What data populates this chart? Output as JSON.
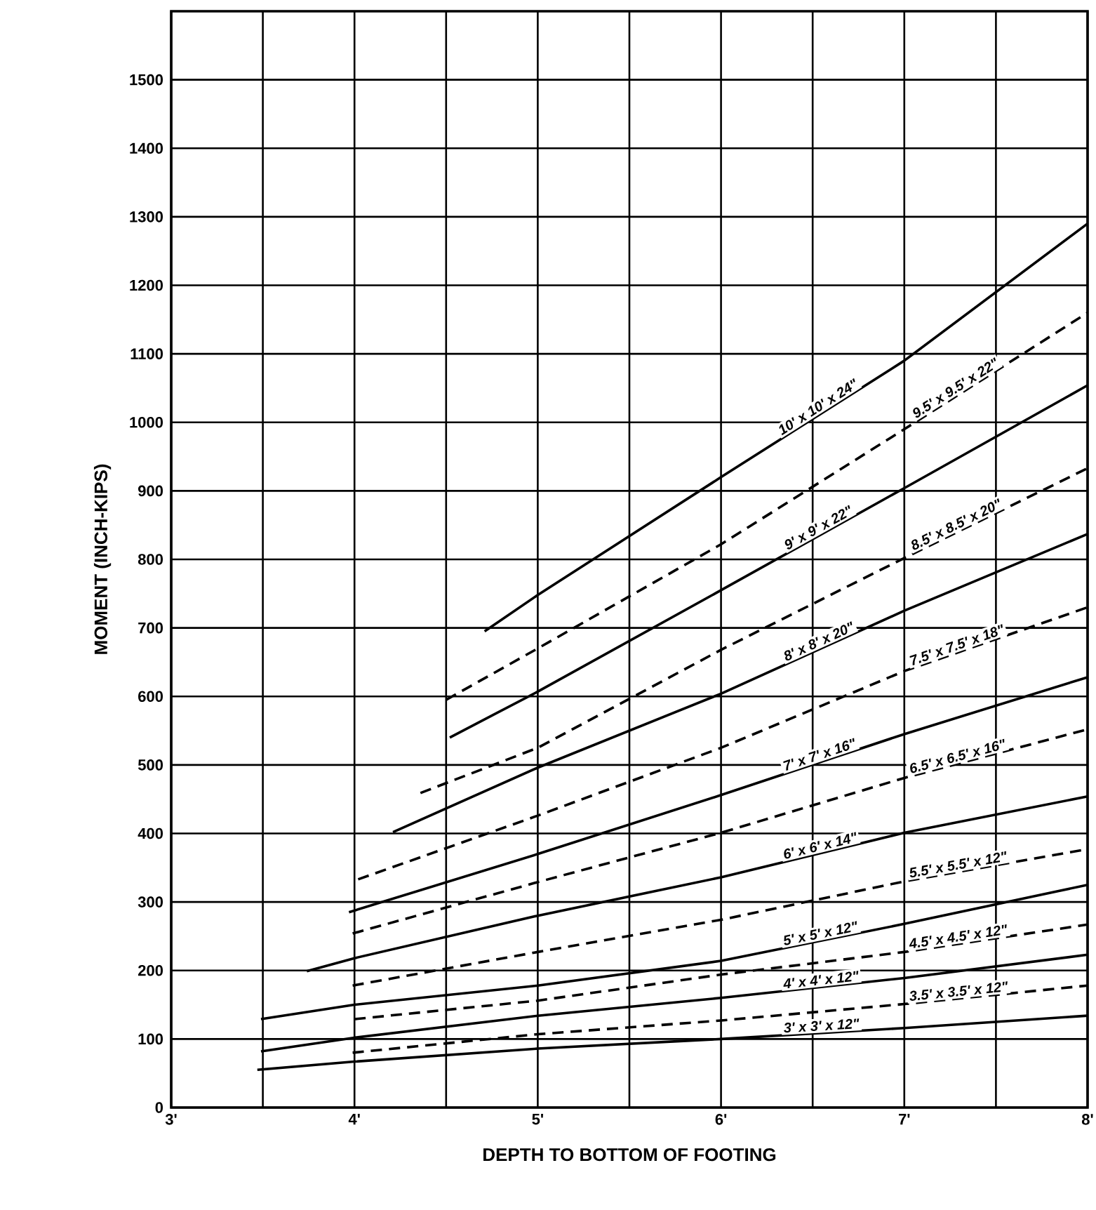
{
  "chart_data": {
    "type": "line",
    "xlabel": "DEPTH TO BOTTOM OF FOOTING",
    "ylabel": "MOMENT (INCH-KIPS)",
    "xlim": [
      3,
      8
    ],
    "ylim": [
      0,
      1600
    ],
    "xticks": [
      {
        "value": 3,
        "label": "3'"
      },
      {
        "value": 3.5,
        "label": null
      },
      {
        "value": 4,
        "label": "4'"
      },
      {
        "value": 4.5,
        "label": null
      },
      {
        "value": 5,
        "label": "5'"
      },
      {
        "value": 5.5,
        "label": null
      },
      {
        "value": 6,
        "label": "6'"
      },
      {
        "value": 6.5,
        "label": null
      },
      {
        "value": 7,
        "label": "7'"
      },
      {
        "value": 7.5,
        "label": null
      },
      {
        "value": 8,
        "label": "8'"
      }
    ],
    "yticks": [
      0,
      100,
      200,
      300,
      400,
      500,
      600,
      700,
      800,
      900,
      1000,
      1100,
      1200,
      1300,
      1400,
      1500
    ],
    "grid": true,
    "legend": false,
    "marker": "none",
    "series": [
      {
        "name": "10' x 10' x 24\"",
        "color": "#000000",
        "line_style": "solid",
        "x": [
          4.71,
          5,
          6,
          7,
          8
        ],
        "values": [
          695,
          748,
          920,
          1090,
          1290
        ]
      },
      {
        "name": "9.5' x 9.5' x 22\"",
        "color": "#000000",
        "line_style": "dashed",
        "x": [
          4.5,
          5,
          6,
          7,
          8
        ],
        "values": [
          595,
          670,
          822,
          990,
          1160
        ]
      },
      {
        "name": "9' x 9' x 22\"",
        "color": "#000000",
        "line_style": "solid",
        "x": [
          4.52,
          5,
          6,
          7,
          8
        ],
        "values": [
          540,
          607,
          755,
          904,
          1054
        ]
      },
      {
        "name": "8.5' x 8.5' x 20\"",
        "color": "#000000",
        "line_style": "dashed",
        "x": [
          4.36,
          5,
          6,
          7,
          8
        ],
        "values": [
          459,
          525,
          668,
          802,
          933
        ]
      },
      {
        "name": "8' x 8' x 20\"",
        "color": "#000000",
        "line_style": "solid",
        "x": [
          4.21,
          5,
          6,
          7,
          8
        ],
        "values": [
          402,
          496,
          604,
          725,
          837
        ]
      },
      {
        "name": "7.5' x 7.5' x 18\"",
        "color": "#000000",
        "line_style": "dashed",
        "x": [
          4.02,
          5,
          6,
          7,
          8
        ],
        "values": [
          333,
          426,
          525,
          637,
          730
        ]
      },
      {
        "name": "7' x 7' x 16\"",
        "color": "#000000",
        "line_style": "solid",
        "x": [
          3.97,
          5,
          6,
          7,
          8
        ],
        "values": [
          285,
          370,
          456,
          545,
          628
        ]
      },
      {
        "name": "6.5' x 6.5' x 16\"",
        "color": "#000000",
        "line_style": "dashed",
        "x": [
          3.99,
          5,
          6,
          7,
          8
        ],
        "values": [
          254,
          329,
          401,
          481,
          552
        ]
      },
      {
        "name": "6' x 6' x 14\"",
        "color": "#000000",
        "line_style": "solid",
        "x": [
          3.74,
          4,
          5,
          6,
          7,
          8
        ],
        "values": [
          199,
          218,
          280,
          336,
          401,
          454
        ]
      },
      {
        "name": "5.5' x 5.5' x 12\"",
        "color": "#000000",
        "line_style": "dashed",
        "x": [
          3.99,
          5,
          6,
          7,
          8
        ],
        "values": [
          178,
          227,
          274,
          330,
          377
        ]
      },
      {
        "name": "5' x 5' x 12\"",
        "color": "#000000",
        "line_style": "solid",
        "x": [
          3.49,
          4,
          5,
          6,
          7,
          8
        ],
        "values": [
          129,
          150,
          178,
          214,
          268,
          325
        ]
      },
      {
        "name": "4.5' x 4.5' x 12\"",
        "color": "#000000",
        "line_style": "dashed",
        "x": [
          4,
          5,
          6,
          7,
          8
        ],
        "values": [
          129,
          156,
          194,
          227,
          267
        ]
      },
      {
        "name": "4' x 4' x 12\"",
        "color": "#000000",
        "line_style": "solid",
        "x": [
          3.49,
          4,
          5,
          6,
          7,
          8
        ],
        "values": [
          82,
          102,
          134,
          160,
          189,
          223
        ]
      },
      {
        "name": "3.5' x 3.5' x 12\"",
        "color": "#000000",
        "line_style": "dashed",
        "x": [
          3.99,
          5,
          6,
          7,
          8
        ],
        "values": [
          80,
          107,
          127,
          151,
          178
        ]
      },
      {
        "name": "3' x 3' x 12\"",
        "color": "#000000",
        "line_style": "solid",
        "x": [
          3.47,
          4,
          5,
          6,
          7,
          8
        ],
        "values": [
          55,
          67,
          86,
          100,
          116,
          134
        ]
      }
    ]
  }
}
